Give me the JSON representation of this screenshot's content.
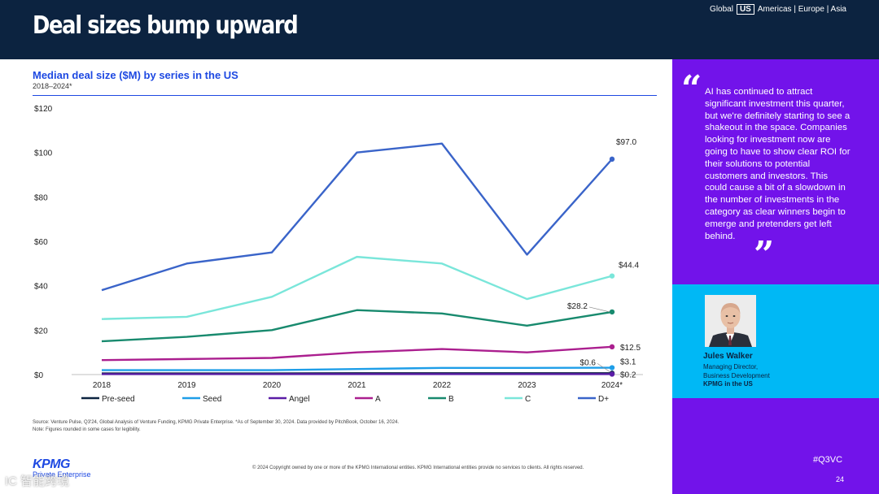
{
  "header": {
    "title": "Deal sizes bump upward",
    "regions": [
      "Global",
      "US",
      "Americas | Europe | Asia"
    ]
  },
  "chart_data": {
    "type": "line",
    "title": "Median deal size ($M) by series in the US",
    "subtitle": "2018–2024*",
    "xlabel": "",
    "ylabel": "",
    "ylim": [
      0,
      120
    ],
    "yticks": [
      0,
      20,
      40,
      60,
      80,
      100,
      120
    ],
    "ytick_labels": [
      "$0",
      "$20",
      "$40",
      "$60",
      "$80",
      "$100",
      "$120"
    ],
    "categories": [
      "2018",
      "2019",
      "2020",
      "2021",
      "2022",
      "2023",
      "2024*"
    ],
    "series": [
      {
        "name": "Pre-seed",
        "color": "#0c2340",
        "values": [
          0.5,
          0.5,
          0.5,
          0.6,
          0.6,
          0.6,
          0.6
        ]
      },
      {
        "name": "Seed",
        "color": "#1e9ee8",
        "values": [
          2.0,
          2.0,
          2.0,
          2.5,
          3.0,
          3.0,
          3.1
        ]
      },
      {
        "name": "Angel",
        "color": "#5a1ca6",
        "values": [
          0.2,
          0.2,
          0.2,
          0.2,
          0.2,
          0.2,
          0.2
        ]
      },
      {
        "name": "A",
        "color": "#ab1f8f",
        "values": [
          6.5,
          7.0,
          7.5,
          10.0,
          11.5,
          10.0,
          12.5
        ]
      },
      {
        "name": "B",
        "color": "#188a6e",
        "values": [
          15.0,
          17.0,
          20.0,
          29.0,
          27.5,
          22.0,
          28.2
        ]
      },
      {
        "name": "C",
        "color": "#7ae6da",
        "values": [
          25.0,
          26.0,
          35.0,
          53.0,
          50.0,
          34.0,
          44.4
        ]
      },
      {
        "name": "D+",
        "color": "#3a64c9",
        "values": [
          38.0,
          50.0,
          55.0,
          100.0,
          104.0,
          54.0,
          97.0
        ]
      }
    ],
    "end_labels": [
      {
        "series": "D+",
        "text": "$97.0"
      },
      {
        "series": "C",
        "text": "$44.4"
      },
      {
        "series": "B",
        "text": "$28.2"
      },
      {
        "series": "A",
        "text": "$12.5"
      },
      {
        "series": "Seed",
        "text": "$3.1"
      },
      {
        "series": "Pre-seed",
        "text": "$0.6"
      },
      {
        "series": "Angel",
        "text": "$0.2"
      }
    ],
    "legend_position": "bottom"
  },
  "footer": {
    "source": "Source: Venture Pulse, Q3'24, Global Analysis of Venture Funding, KPMG Private Enterprise. *As of September 30, 2024. Data provided by PitchBook, October 16, 2024.",
    "note": "Note: Figures rounded in some cases for legibility.",
    "copyright": "© 2024 Copyright owned by one or more of the KPMG International entities. KPMG International entities provide no services to clients. All rights reserved.",
    "logo_word": "KPMG",
    "logo_sub": "Private Enterprise",
    "watermark": "IC 智能跨境"
  },
  "sidebar": {
    "quote_open": "“",
    "quote": "AI has continued to attract significant investment this quarter, but we're definitely starting to see a shakeout in the space. Companies looking for investment now are going to have to show clear ROI for their solutions to potential customers and investors. This could cause a bit of a slowdown in the number of investments in the category as clear winners begin to emerge and pretenders get left behind.",
    "quote_close": "”",
    "person": {
      "name": "Jules Walker",
      "role_line1": "Managing Director,",
      "role_line2": "Business Development",
      "org": "KPMG in the US"
    },
    "hashtag": "#Q3VC",
    "page_number": "24"
  }
}
